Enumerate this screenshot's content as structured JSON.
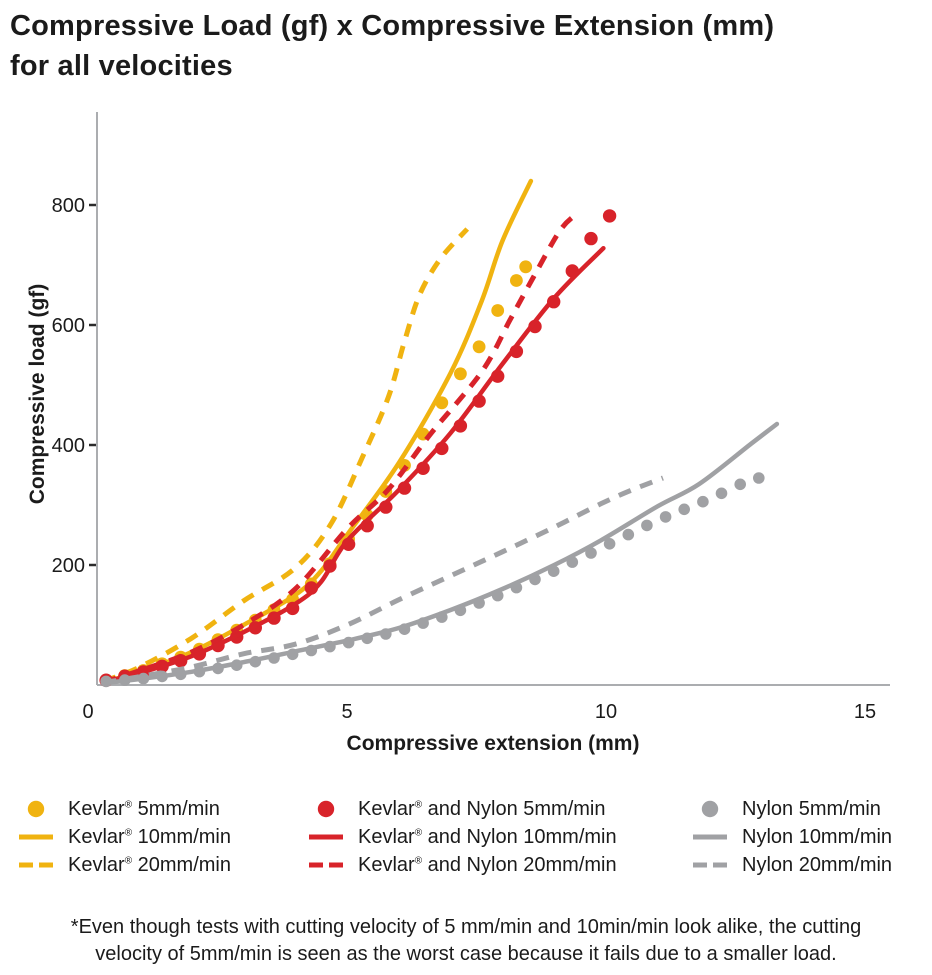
{
  "title": {
    "line1": "Compressive Load (gf) x Compressive Extension (mm)",
    "line2": "for all velocities"
  },
  "chart_data": {
    "type": "line",
    "title": "Compressive Load (gf) x Compressive Extension (mm) for all velocities",
    "xlabel": "Compressive extension (mm)",
    "ylabel": "Compressive load (gf)",
    "x_ticks": [
      0,
      5,
      10,
      15
    ],
    "y_ticks": [
      200,
      400,
      600,
      800
    ],
    "xlim": [
      0,
      15.5
    ],
    "ylim": [
      0,
      950
    ],
    "grid": false,
    "legend_position": "bottom",
    "axis_color": "#ABADB0",
    "tick_color": "#2b2b2b",
    "text_color": "#1b1b1b",
    "series": [
      {
        "key": "kevlar-5",
        "name": "Kevlar® 5mm/min",
        "style": "dots",
        "color": "#F0B310",
        "marker_step": 0.36,
        "points": [
          [
            0.35,
            8
          ],
          [
            1,
            22
          ],
          [
            2,
            53
          ],
          [
            3,
            97
          ],
          [
            4,
            145
          ],
          [
            4.5,
            183
          ],
          [
            5,
            240
          ],
          [
            6,
            350
          ],
          [
            7,
            495
          ],
          [
            7.6,
            570
          ],
          [
            8,
            640
          ],
          [
            8.45,
            697
          ]
        ]
      },
      {
        "key": "kevlar-10",
        "name": "Kevlar® 10mm/min",
        "style": "solid",
        "color": "#F0B310",
        "points": [
          [
            0.3,
            5
          ],
          [
            1,
            22
          ],
          [
            2,
            55
          ],
          [
            3,
            100
          ],
          [
            4,
            150
          ],
          [
            4.5,
            190
          ],
          [
            5,
            250
          ],
          [
            6,
            370
          ],
          [
            7,
            520
          ],
          [
            7.6,
            640
          ],
          [
            8,
            740
          ],
          [
            8.55,
            840
          ]
        ]
      },
      {
        "key": "kevlar-20",
        "name": "Kevlar® 20mm/min",
        "style": "dashed",
        "color": "#F0B310",
        "points": [
          [
            0.3,
            6
          ],
          [
            1,
            30
          ],
          [
            2,
            78
          ],
          [
            3,
            140
          ],
          [
            4,
            195
          ],
          [
            4.7,
            270
          ],
          [
            5.3,
            380
          ],
          [
            5.8,
            480
          ],
          [
            6.1,
            570
          ],
          [
            6.4,
            650
          ],
          [
            6.8,
            710
          ],
          [
            7.32,
            760
          ]
        ]
      },
      {
        "key": "kevlar-nylon-5",
        "name": "Kevlar® and Nylon 5mm/min",
        "style": "dots",
        "color": "#D8232A",
        "marker_step": 0.36,
        "points": [
          [
            0.35,
            8
          ],
          [
            1,
            20
          ],
          [
            2,
            46
          ],
          [
            3,
            85
          ],
          [
            4,
            130
          ],
          [
            5,
            232
          ],
          [
            6,
            318
          ],
          [
            7,
            410
          ],
          [
            8,
            525
          ],
          [
            9,
            640
          ],
          [
            9.35,
            690
          ],
          [
            9.7,
            743
          ],
          [
            10.1,
            785
          ]
        ]
      },
      {
        "key": "kevlar-nylon-10",
        "name": "Kevlar® and Nylon 10mm/min",
        "style": "solid",
        "color": "#D8232A",
        "points": [
          [
            0.3,
            5
          ],
          [
            1,
            20
          ],
          [
            2,
            48
          ],
          [
            3,
            88
          ],
          [
            4,
            135
          ],
          [
            4.5,
            172
          ],
          [
            5,
            240
          ],
          [
            6,
            325
          ],
          [
            7,
            420
          ],
          [
            8,
            535
          ],
          [
            9,
            645
          ],
          [
            9.95,
            728
          ]
        ]
      },
      {
        "key": "kevlar-nylon-20",
        "name": "Kevlar® and Nylon 20mm/min",
        "style": "dashed",
        "color": "#D8232A",
        "points": [
          [
            0.3,
            5
          ],
          [
            1,
            24
          ],
          [
            2,
            55
          ],
          [
            3,
            100
          ],
          [
            4,
            160
          ],
          [
            5,
            260
          ],
          [
            5.8,
            326
          ],
          [
            6.6,
            417
          ],
          [
            7.6,
            522
          ],
          [
            8.15,
            609
          ],
          [
            8.6,
            680
          ],
          [
            9.1,
            756
          ],
          [
            9.4,
            783
          ]
        ]
      },
      {
        "key": "nylon-5",
        "name": "Nylon 5mm/min",
        "style": "dots",
        "color": "#A0A1A4",
        "marker_step": 0.36,
        "points": [
          [
            0.35,
            6
          ],
          [
            1,
            10
          ],
          [
            2,
            20
          ],
          [
            3,
            35
          ],
          [
            4,
            52
          ],
          [
            5,
            70
          ],
          [
            6,
            90
          ],
          [
            7,
            118
          ],
          [
            8,
            152
          ],
          [
            9,
            190
          ],
          [
            9.9,
            228
          ],
          [
            11,
            275
          ],
          [
            12,
            310
          ],
          [
            12.6,
            335
          ],
          [
            12.95,
            345
          ]
        ]
      },
      {
        "key": "nylon-10",
        "name": "Nylon 10mm/min",
        "style": "solid",
        "color": "#A0A1A4",
        "points": [
          [
            0.3,
            3
          ],
          [
            1,
            10
          ],
          [
            2,
            22
          ],
          [
            3,
            38
          ],
          [
            4,
            56
          ],
          [
            5,
            74
          ],
          [
            6,
            95
          ],
          [
            7,
            125
          ],
          [
            8,
            160
          ],
          [
            9,
            200
          ],
          [
            9.9,
            241
          ],
          [
            11,
            298
          ],
          [
            11.8,
            335
          ],
          [
            12.8,
            402
          ],
          [
            13.3,
            435
          ]
        ]
      },
      {
        "key": "nylon-20",
        "name": "Nylon 20mm/min",
        "style": "dashed",
        "color": "#A0A1A4",
        "points": [
          [
            0.3,
            4
          ],
          [
            1,
            14
          ],
          [
            2,
            30
          ],
          [
            3,
            52
          ],
          [
            4,
            68
          ],
          [
            5,
            100
          ],
          [
            6,
            142
          ],
          [
            7,
            182
          ],
          [
            8,
            222
          ],
          [
            9,
            263
          ],
          [
            9.9,
            302
          ],
          [
            10.5,
            325
          ],
          [
            11.1,
            345
          ]
        ]
      }
    ]
  },
  "footnote": "*Even though tests with cutting velocity of 5 mm/min and 10min/min look alike, the cutting\nvelocity of 5mm/min is seen as the worst case because it fails due to a smaller load."
}
